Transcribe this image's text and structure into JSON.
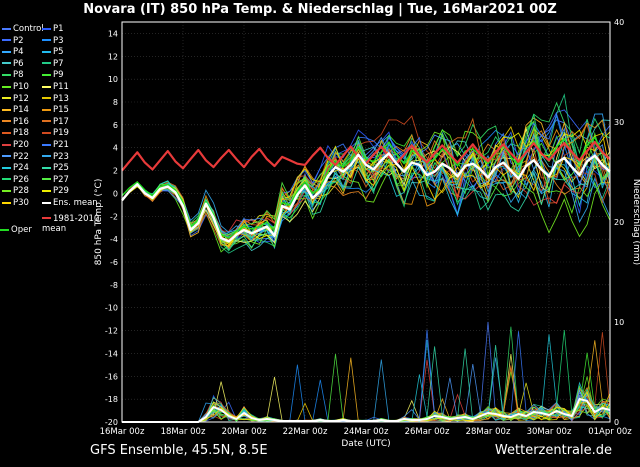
{
  "title": "Novara  (IT)  850 hPa Temp. & Niederschlag | Tue, 16Mar2021 00Z",
  "footer": {
    "left": "GFS Ensemble, 45.5N, 8.5E",
    "right": "Wetterzentrale.de"
  },
  "colors": {
    "background": "#000000",
    "ens_mean": "#ffffff",
    "climate_mean": "#e83a3a",
    "oper": "#22dd22"
  },
  "legend": [
    {
      "name": "Control",
      "color": "#4b7bff"
    },
    {
      "name": "P1",
      "color": "#2d5cff"
    },
    {
      "name": "P2",
      "color": "#3c6cff"
    },
    {
      "name": "P3",
      "color": "#1e90ff"
    },
    {
      "name": "P4",
      "color": "#33aaff"
    },
    {
      "name": "P5",
      "color": "#22bbee"
    },
    {
      "name": "P6",
      "color": "#44cccc"
    },
    {
      "name": "P7",
      "color": "#22cc88"
    },
    {
      "name": "P8",
      "color": "#33dd66"
    },
    {
      "name": "P9",
      "color": "#44ee33"
    },
    {
      "name": "P10",
      "color": "#66ee22"
    },
    {
      "name": "P11",
      "color": "#ffff66"
    },
    {
      "name": "P12",
      "color": "#eeee22"
    },
    {
      "name": "P13",
      "color": "#e6c800"
    },
    {
      "name": "P14",
      "color": "#ffbb22"
    },
    {
      "name": "P15",
      "color": "#ee9911"
    },
    {
      "name": "P16",
      "color": "#ee8822"
    },
    {
      "name": "P17",
      "color": "#e07020"
    },
    {
      "name": "P18",
      "color": "#e05a20"
    },
    {
      "name": "P19",
      "color": "#d04a20"
    },
    {
      "name": "P20",
      "color": "#e04040"
    },
    {
      "name": "P21",
      "color": "#3a7aff"
    },
    {
      "name": "P22",
      "color": "#4d9cff"
    },
    {
      "name": "P23",
      "color": "#33aaee"
    },
    {
      "name": "P24",
      "color": "#22ccdd"
    },
    {
      "name": "P25",
      "color": "#33ddaa"
    },
    {
      "name": "P26",
      "color": "#22dd77"
    },
    {
      "name": "P27",
      "color": "#55ee44"
    },
    {
      "name": "P28",
      "color": "#77ee22"
    },
    {
      "name": "P29",
      "color": "#eeee00"
    },
    {
      "name": "P30",
      "color": "#ffd700"
    },
    {
      "name": "Ens. mean",
      "color": "#ffffff"
    }
  ],
  "legend_extra": {
    "climate": "1981-2010\nmean",
    "oper": "Oper"
  },
  "chart_data": {
    "type": "line",
    "xlabel": "Date (UTC)",
    "ylabel_left": "850 hPa Temp. (°C)",
    "ylabel_right": "Niederschlag (mm)",
    "x_ticks": [
      "16Mar 00z",
      "18Mar 00z",
      "20Mar 00z",
      "22Mar 00z",
      "24Mar 00z",
      "26Mar 00z",
      "28Mar 00z",
      "30Mar 00z",
      "01Apr 00z"
    ],
    "x_range_days": [
      0,
      16
    ],
    "ylim_left": [
      -20,
      15
    ],
    "ylim_right": [
      0,
      40
    ],
    "y_ticks_left": [
      14,
      12,
      10,
      8,
      6,
      4,
      2,
      0,
      -2,
      -4,
      -6,
      -8,
      -10,
      -12,
      -14,
      -16,
      -18,
      -20
    ],
    "y_ticks_right": [
      40,
      30,
      20,
      10,
      0
    ],
    "grid": true,
    "step_hours": 6,
    "ens_mean_temp": [
      -0.6,
      0.2,
      0.8,
      0.0,
      -0.4,
      0.4,
      0.6,
      0.1,
      -1.1,
      -3.2,
      -2.6,
      -0.9,
      -2.1,
      -3.9,
      -4.2,
      -3.6,
      -3.2,
      -3.5,
      -3.2,
      -2.9,
      -3.7,
      -1.1,
      -1.4,
      -0.1,
      0.7,
      -0.4,
      0.2,
      1.5,
      2.3,
      1.9,
      2.5,
      3.4,
      2.5,
      2.1,
      2.9,
      3.5,
      2.6,
      1.9,
      2.7,
      2.5,
      1.6,
      1.9,
      2.6,
      2.2,
      1.5,
      2.4,
      2.6,
      2.1,
      1.4,
      2.3,
      2.7,
      2.0,
      1.3,
      2.4,
      2.9,
      2.1,
      1.5,
      2.7,
      3.1,
      2.3,
      1.6,
      2.8,
      3.3,
      2.5,
      1.9
    ],
    "climate_mean_temp": [
      2.0,
      2.8,
      3.6,
      2.7,
      2.1,
      2.9,
      3.7,
      2.8,
      2.2,
      3.0,
      3.8,
      2.9,
      2.3,
      3.1,
      3.8,
      3.0,
      2.3,
      3.2,
      3.9,
      3.0,
      2.4,
      3.2,
      2.9,
      2.6,
      2.5,
      3.3,
      4.0,
      3.1,
      2.5,
      3.3,
      4.1,
      3.2,
      2.6,
      3.4,
      4.1,
      3.2,
      2.6,
      3.4,
      4.2,
      3.3,
      2.7,
      3.5,
      4.2,
      3.4,
      2.7,
      3.5,
      4.3,
      3.4,
      2.8,
      3.6,
      4.3,
      3.5,
      2.8,
      3.6,
      4.4,
      3.5,
      2.9,
      3.7,
      4.4,
      3.6,
      2.9,
      3.7,
      4.5,
      3.6,
      3.0
    ],
    "ens_mean_precip": [
      0,
      0,
      0,
      0,
      0,
      0,
      0,
      0,
      0,
      0,
      0,
      0.5,
      1.5,
      1.2,
      0.6,
      0.3,
      0.9,
      0.4,
      0.2,
      0.3,
      0.2,
      0.1,
      0.1,
      0.1,
      0.1,
      0.1,
      0.2,
      0.1,
      0.1,
      0.2,
      0.1,
      0.1,
      0.1,
      0.1,
      0.2,
      0.1,
      0.1,
      0.3,
      0.2,
      0.2,
      0.3,
      0.6,
      0.5,
      0.3,
      0.4,
      0.5,
      0.3,
      0.6,
      0.9,
      0.8,
      0.6,
      0.5,
      0.8,
      0.6,
      1.0,
      0.9,
      0.7,
      1.1,
      0.8,
      0.6,
      2.3,
      2.1,
      1.0,
      1.4,
      1.2
    ],
    "oper_temp": [
      -0.2,
      0.5,
      1.0,
      0.3,
      -0.2,
      0.6,
      0.8,
      0.3,
      -0.8,
      -2.9,
      -2.3,
      -0.7,
      -1.9,
      -3.6,
      -3.9,
      -3.3,
      -2.9,
      -3.1,
      -2.9,
      -2.5,
      -3.3,
      -0.8,
      -1.0,
      0.2,
      1.0,
      0.0,
      0.5,
      1.9,
      2.8,
      2.3,
      2.9,
      4.1,
      3.0,
      2.8,
      3.6,
      4.5,
      3.4,
      2.6,
      3.7,
      3.5,
      2.6,
      3.0,
      3.9,
      3.3,
      2.4,
      3.7,
      3.9,
      3.3,
      2.6,
      3.5,
      4.2,
      3.2,
      2.5,
      3.6,
      4.6,
      3.5,
      2.8,
      4.1,
      4.8,
      3.5,
      2.9,
      4.2,
      4.9,
      3.6,
      3.1
    ]
  }
}
